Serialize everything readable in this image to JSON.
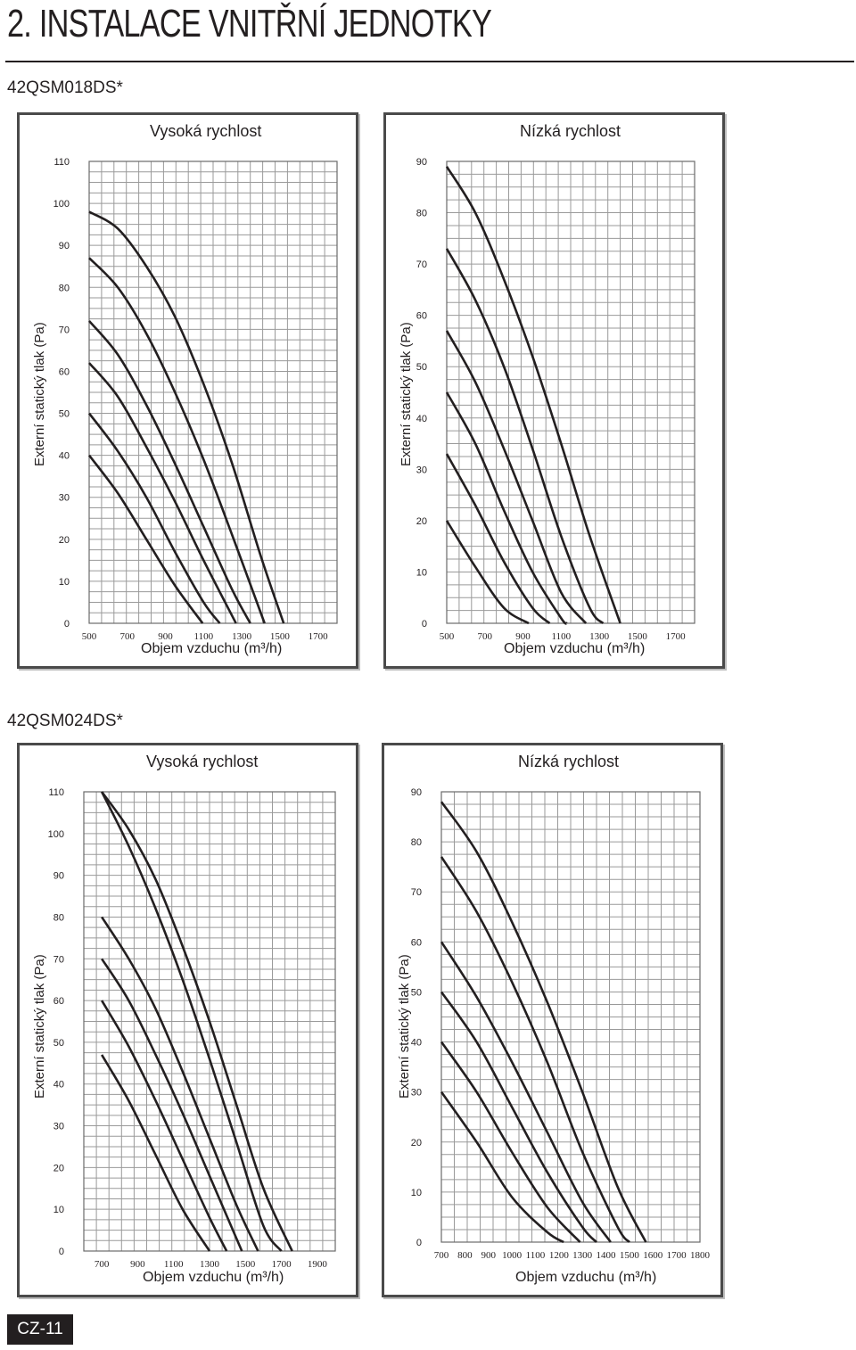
{
  "page": {
    "title": "2. INSTALACE VNITŘNÍ JEDNOTKY",
    "page_number": "CZ-11"
  },
  "sections": [
    {
      "model": "42QSM018DS*",
      "charts": [
        {
          "title": "Vysoká rychlost",
          "xlabel": "Objem vzduchu (m³/h)",
          "ylabel": "Externí statický tlak (Pa)"
        },
        {
          "title": "Nízká rychlost",
          "xlabel": "Objem vzduchu (m³/h)",
          "ylabel": "Externí statický tlak (Pa)"
        }
      ]
    },
    {
      "model": "42QSM024DS*",
      "charts": [
        {
          "title": "Vysoká rychlost",
          "xlabel": "Objem vzduchu (m³/h)",
          "ylabel": "Externí statický tlak (Pa)"
        },
        {
          "title": "Nízká rychlost",
          "xlabel": "Objem vzduchu (m³/h)",
          "ylabel": "Externí statický tlak (Pa)"
        }
      ]
    }
  ],
  "chart_data": [
    {
      "type": "line",
      "title": "Vysoká rychlost",
      "xlabel": "Objem vzduchu (m3/h)",
      "ylabel": "Externí statický tlak (Pa)",
      "xlim": [
        500,
        1800
      ],
      "ylim": [
        0,
        110
      ],
      "x_ticks": [
        500,
        700,
        900,
        1100,
        1300,
        1500,
        1700
      ],
      "y_ticks": [
        0,
        10,
        20,
        30,
        40,
        50,
        60,
        70,
        80,
        90,
        100,
        110
      ],
      "grid": true,
      "series": [
        {
          "x": [
            500,
            650,
            800,
            950,
            1100,
            1250,
            1400,
            1520
          ],
          "y": [
            98,
            94,
            85,
            73,
            57,
            38,
            16,
            0
          ]
        },
        {
          "x": [
            500,
            650,
            800,
            950,
            1100,
            1250,
            1420
          ],
          "y": [
            87,
            80,
            69,
            55,
            39,
            21,
            0
          ]
        },
        {
          "x": [
            500,
            650,
            800,
            950,
            1100,
            1250,
            1345
          ],
          "y": [
            72,
            64,
            52,
            38,
            23,
            8,
            0
          ]
        },
        {
          "x": [
            500,
            650,
            800,
            950,
            1100,
            1270
          ],
          "y": [
            62,
            54,
            42,
            29,
            15,
            0
          ]
        },
        {
          "x": [
            500,
            650,
            800,
            950,
            1100,
            1185
          ],
          "y": [
            50,
            41,
            30,
            17,
            5,
            0
          ]
        },
        {
          "x": [
            500,
            650,
            800,
            950,
            1095
          ],
          "y": [
            40,
            31,
            20,
            9,
            0
          ]
        }
      ]
    },
    {
      "type": "line",
      "title": "Nízká rychlost",
      "xlabel": "Objem vzduchu (m3/h)",
      "ylabel": "Externí statický tlak (Pa)",
      "xlim": [
        500,
        1800
      ],
      "ylim": [
        0,
        90
      ],
      "x_ticks": [
        500,
        700,
        900,
        1100,
        1300,
        1500,
        1700
      ],
      "y_ticks": [
        0,
        10,
        20,
        30,
        40,
        50,
        60,
        70,
        80,
        90
      ],
      "grid": true,
      "series": [
        {
          "x": [
            500,
            650,
            800,
            950,
            1100,
            1250,
            1410
          ],
          "y": [
            89,
            80,
            67,
            52,
            35,
            17,
            0
          ]
        },
        {
          "x": [
            500,
            650,
            800,
            950,
            1100,
            1250,
            1320
          ],
          "y": [
            73,
            63,
            50,
            34,
            17,
            3,
            0
          ]
        },
        {
          "x": [
            500,
            650,
            800,
            950,
            1100,
            1230
          ],
          "y": [
            57,
            47,
            34,
            20,
            6,
            0
          ]
        },
        {
          "x": [
            500,
            650,
            800,
            950,
            1100,
            1130
          ],
          "y": [
            45,
            35,
            22,
            10,
            1,
            0
          ]
        },
        {
          "x": [
            500,
            650,
            800,
            950,
            1040
          ],
          "y": [
            33,
            23,
            12,
            3,
            0
          ]
        },
        {
          "x": [
            500,
            650,
            800,
            930
          ],
          "y": [
            20,
            11,
            3,
            0
          ]
        }
      ]
    },
    {
      "type": "line",
      "title": "Vysoká rychlost",
      "xlabel": "Objem vzduchu (m3/h)",
      "ylabel": "Externí statický tlak (Pa)",
      "xlim": [
        600,
        2000
      ],
      "ylim": [
        0,
        110
      ],
      "x_ticks": [
        700,
        900,
        1100,
        1300,
        1500,
        1700,
        1900
      ],
      "y_ticks": [
        0,
        10,
        20,
        30,
        40,
        50,
        60,
        70,
        80,
        90,
        100,
        110
      ],
      "grid": true,
      "series": [
        {
          "x": [
            700,
            850,
            1000,
            1150,
            1300,
            1450,
            1600,
            1760
          ],
          "y": [
            110,
            101,
            89,
            73,
            55,
            35,
            15,
            0
          ]
        },
        {
          "x": [
            700,
            850,
            1000,
            1150,
            1300,
            1450,
            1600,
            1700
          ],
          "y": [
            110,
            97,
            82,
            65,
            46,
            26,
            6,
            0
          ]
        },
        {
          "x": [
            700,
            850,
            1000,
            1150,
            1300,
            1450,
            1570
          ],
          "y": [
            80,
            70,
            58,
            43,
            27,
            11,
            0
          ]
        },
        {
          "x": [
            700,
            850,
            1000,
            1150,
            1300,
            1450,
            1480
          ],
          "y": [
            70,
            60,
            47,
            33,
            18,
            3,
            0
          ]
        },
        {
          "x": [
            700,
            850,
            1000,
            1150,
            1300,
            1395
          ],
          "y": [
            60,
            49,
            36,
            22,
            8,
            0
          ]
        },
        {
          "x": [
            700,
            850,
            1000,
            1150,
            1300
          ],
          "y": [
            47,
            36,
            23,
            10,
            0
          ]
        }
      ]
    },
    {
      "type": "line",
      "title": "Nízká rychlost",
      "xlabel": "Objem vzduchu (m3/h)",
      "ylabel": "Externí statický tlak (Pa)",
      "xlim": [
        700,
        1800
      ],
      "ylim": [
        0,
        90
      ],
      "x_ticks": [
        700,
        800,
        900,
        1000,
        1100,
        1200,
        1300,
        1400,
        1500,
        1600,
        1700,
        1800
      ],
      "y_ticks": [
        0,
        10,
        20,
        30,
        40,
        50,
        60,
        70,
        80,
        90
      ],
      "grid": true,
      "series": [
        {
          "x": [
            700,
            850,
            1000,
            1150,
            1300,
            1450,
            1570
          ],
          "y": [
            88,
            78,
            64,
            48,
            30,
            11,
            0
          ]
        },
        {
          "x": [
            700,
            850,
            1000,
            1150,
            1300,
            1450,
            1500
          ],
          "y": [
            77,
            66,
            52,
            36,
            18,
            3,
            0
          ]
        },
        {
          "x": [
            700,
            850,
            1000,
            1150,
            1300,
            1420
          ],
          "y": [
            60,
            49,
            36,
            22,
            8,
            0
          ]
        },
        {
          "x": [
            700,
            850,
            1000,
            1150,
            1300,
            1360
          ],
          "y": [
            50,
            40,
            27,
            14,
            3,
            0
          ]
        },
        {
          "x": [
            700,
            850,
            1000,
            1150,
            1290
          ],
          "y": [
            40,
            30,
            18,
            7,
            0
          ]
        },
        {
          "x": [
            700,
            850,
            1000,
            1150,
            1220
          ],
          "y": [
            30,
            20,
            9,
            2,
            0
          ]
        }
      ]
    }
  ]
}
